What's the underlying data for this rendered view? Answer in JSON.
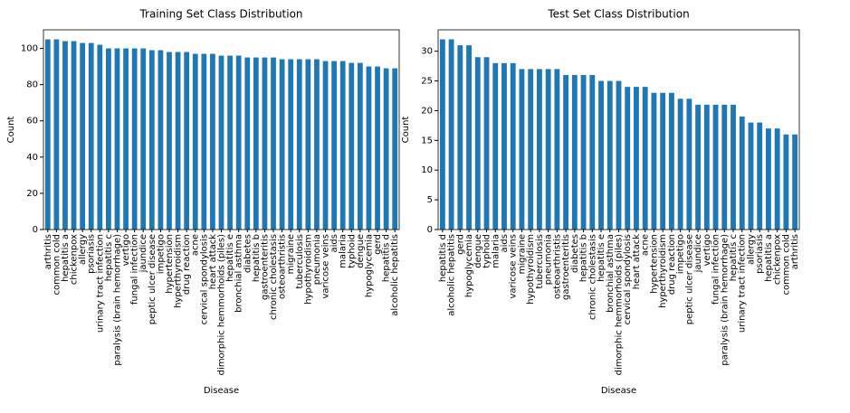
{
  "chart_data": [
    {
      "type": "bar",
      "title": "Training Set Class Distribution",
      "xlabel": "Disease",
      "ylabel": "Count",
      "color": "#1f77b4",
      "categories": [
        "arthritis",
        "common cold",
        "hepatitis a",
        "chickenpox",
        "allergy",
        "psoriasis",
        "urinary tract infection",
        "hepatitis c",
        "paralysis (brain hemorrhage)",
        "vertigo",
        "fungal infection",
        "jaundice",
        "peptic ulcer disease",
        "impetigo",
        "hypertension",
        "hyperthyroidism",
        "drug reaction",
        "acne",
        "cervical spondylosis",
        "heart attack",
        "dimorphic hemmorhoids (piles)",
        "hepatitis e",
        "bronchial asthma",
        "diabetes",
        "hepatitis b",
        "gastroenteritis",
        "chronic cholestasis",
        "osteoarthristis",
        "migraine",
        "tuberculosis",
        "hypothyroidism",
        "pneumonia",
        "varicose veins",
        "aids",
        "malaria",
        "typhoid",
        "dengue",
        "hypoglycemia",
        "gerd",
        "hepatitis d",
        "alcoholic hepatitis"
      ],
      "values": [
        105,
        105,
        104,
        104,
        103,
        103,
        102,
        100,
        100,
        100,
        100,
        100,
        99,
        99,
        98,
        98,
        98,
        97,
        97,
        97,
        96,
        96,
        96,
        95,
        95,
        95,
        95,
        94,
        94,
        94,
        94,
        94,
        93,
        93,
        93,
        92,
        92,
        90,
        90,
        89,
        89
      ],
      "ylim": [
        0,
        110.25
      ],
      "yticks": [
        0,
        20,
        40,
        60,
        80,
        100
      ]
    },
    {
      "type": "bar",
      "title": "Test Set Class Distribution",
      "xlabel": "Disease",
      "ylabel": "Count",
      "color": "#1f77b4",
      "categories": [
        "hepatitis d",
        "alcoholic hepatitis",
        "gerd",
        "hypoglycemia",
        "dengue",
        "typhoid",
        "malaria",
        "aids",
        "varicose veins",
        "migraine",
        "hypothyroidism",
        "tuberculosis",
        "pneumonia",
        "osteoarthristis",
        "gastroenteritis",
        "diabetes",
        "hepatitis b",
        "chronic cholestasis",
        "hepatitis e",
        "bronchial asthma",
        "dimorphic hemmorhoids (piles)",
        "cervical spondylosis",
        "heart attack",
        "acne",
        "hypertension",
        "hyperthyroidism",
        "drug reaction",
        "impetigo",
        "peptic ulcer disease",
        "jaundice",
        "vertigo",
        "fungal infection",
        "paralysis (brain hemorrhage)",
        "hepatitis c",
        "urinary tract infection",
        "allergy",
        "psoriasis",
        "hepatitis a",
        "chickenpox",
        "common cold",
        "arthritis"
      ],
      "values": [
        32,
        32,
        31,
        31,
        29,
        29,
        28,
        28,
        28,
        27,
        27,
        27,
        27,
        27,
        26,
        26,
        26,
        26,
        25,
        25,
        25,
        24,
        24,
        24,
        23,
        23,
        23,
        22,
        22,
        21,
        21,
        21,
        21,
        21,
        19,
        18,
        18,
        17,
        17,
        16,
        16
      ],
      "ylim": [
        0,
        33.6
      ],
      "yticks": [
        0,
        5,
        10,
        15,
        20,
        25,
        30
      ]
    }
  ]
}
